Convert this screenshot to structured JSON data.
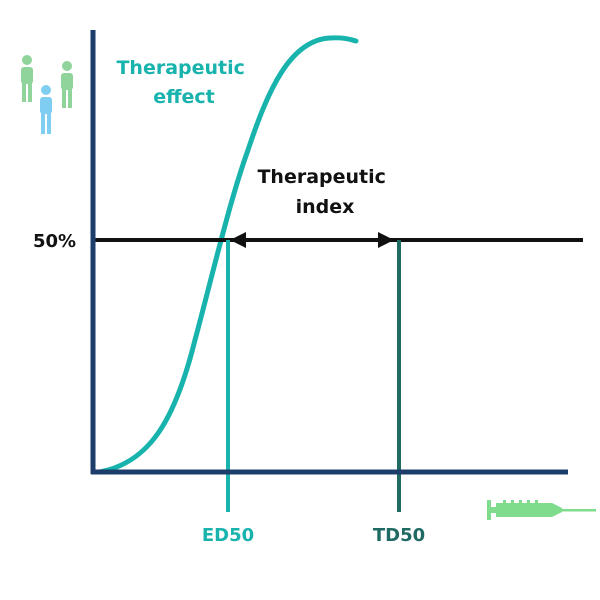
{
  "labels": {
    "curve_name": [
      "Therapeutic",
      "effect"
    ],
    "index_name": [
      "Therapeutic",
      "index"
    ],
    "y_tick": "50%",
    "ed50": "ED50",
    "td50": "TD50"
  },
  "icons": {
    "people": "people-icon",
    "dose": "syringe-icon"
  },
  "colors": {
    "axis": "#1d3d6a",
    "curve": "#18b3ad",
    "ed50_line": "#18b3ad",
    "td50_line": "#1f6a63",
    "threshold": "#111111",
    "text_dark": "#111111",
    "people_green": "#8fd49a",
    "people_blue": "#7fcdf0",
    "syringe": "#7fdc8c"
  }
}
